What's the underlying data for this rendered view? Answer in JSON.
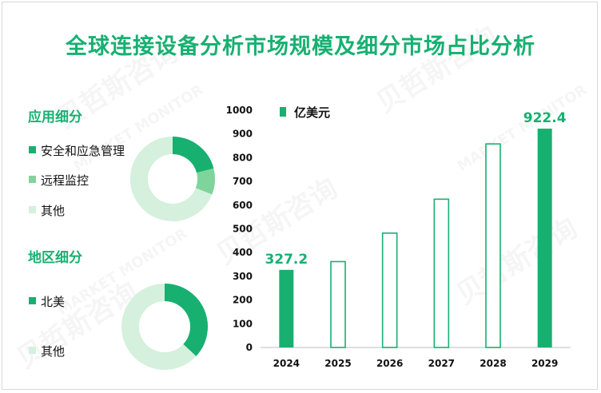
{
  "title": "全球连接设备分析市场规模及细分市场占比分析",
  "colors": {
    "accent": "#17b071",
    "light_green": "#7fd49c",
    "pale_green": "#d5f0dd"
  },
  "application_section": {
    "title": "应用细分",
    "legend": [
      {
        "label": "安全和应急管理",
        "color": "#17b071"
      },
      {
        "label": "远程监控",
        "color": "#7fd49c"
      },
      {
        "label": "其他",
        "color": "#d5f0dd"
      }
    ]
  },
  "region_section": {
    "title": "地区细分",
    "legend": [
      {
        "label": "北美",
        "color": "#17b071"
      },
      {
        "label": "其他",
        "color": "#d5f0dd"
      }
    ]
  },
  "watermark": {
    "text": "贝哲斯咨询",
    "subtext": "MARKET MONITOR"
  },
  "chart_data": [
    {
      "type": "bar",
      "categories": [
        "2024",
        "2025",
        "2026",
        "2027",
        "2028",
        "2029"
      ],
      "values": [
        327.2,
        362,
        482,
        625,
        858,
        922.4
      ],
      "highlighted": [
        true,
        false,
        false,
        false,
        false,
        true
      ],
      "data_labels": {
        "2024": "327.2",
        "2029": "922.4"
      },
      "legend": "亿美元",
      "ylim": [
        0,
        1000
      ],
      "yticks": [
        0,
        100,
        200,
        300,
        400,
        500,
        600,
        700,
        800,
        900,
        1000
      ],
      "title": "",
      "xlabel": "",
      "ylabel": ""
    },
    {
      "type": "pie",
      "name": "应用细分",
      "labels": [
        "安全和应急管理",
        "远程监控",
        "其他"
      ],
      "values": [
        21,
        10,
        69
      ]
    },
    {
      "type": "pie",
      "name": "地区细分",
      "labels": [
        "北美",
        "其他"
      ],
      "values": [
        37,
        63
      ]
    }
  ]
}
